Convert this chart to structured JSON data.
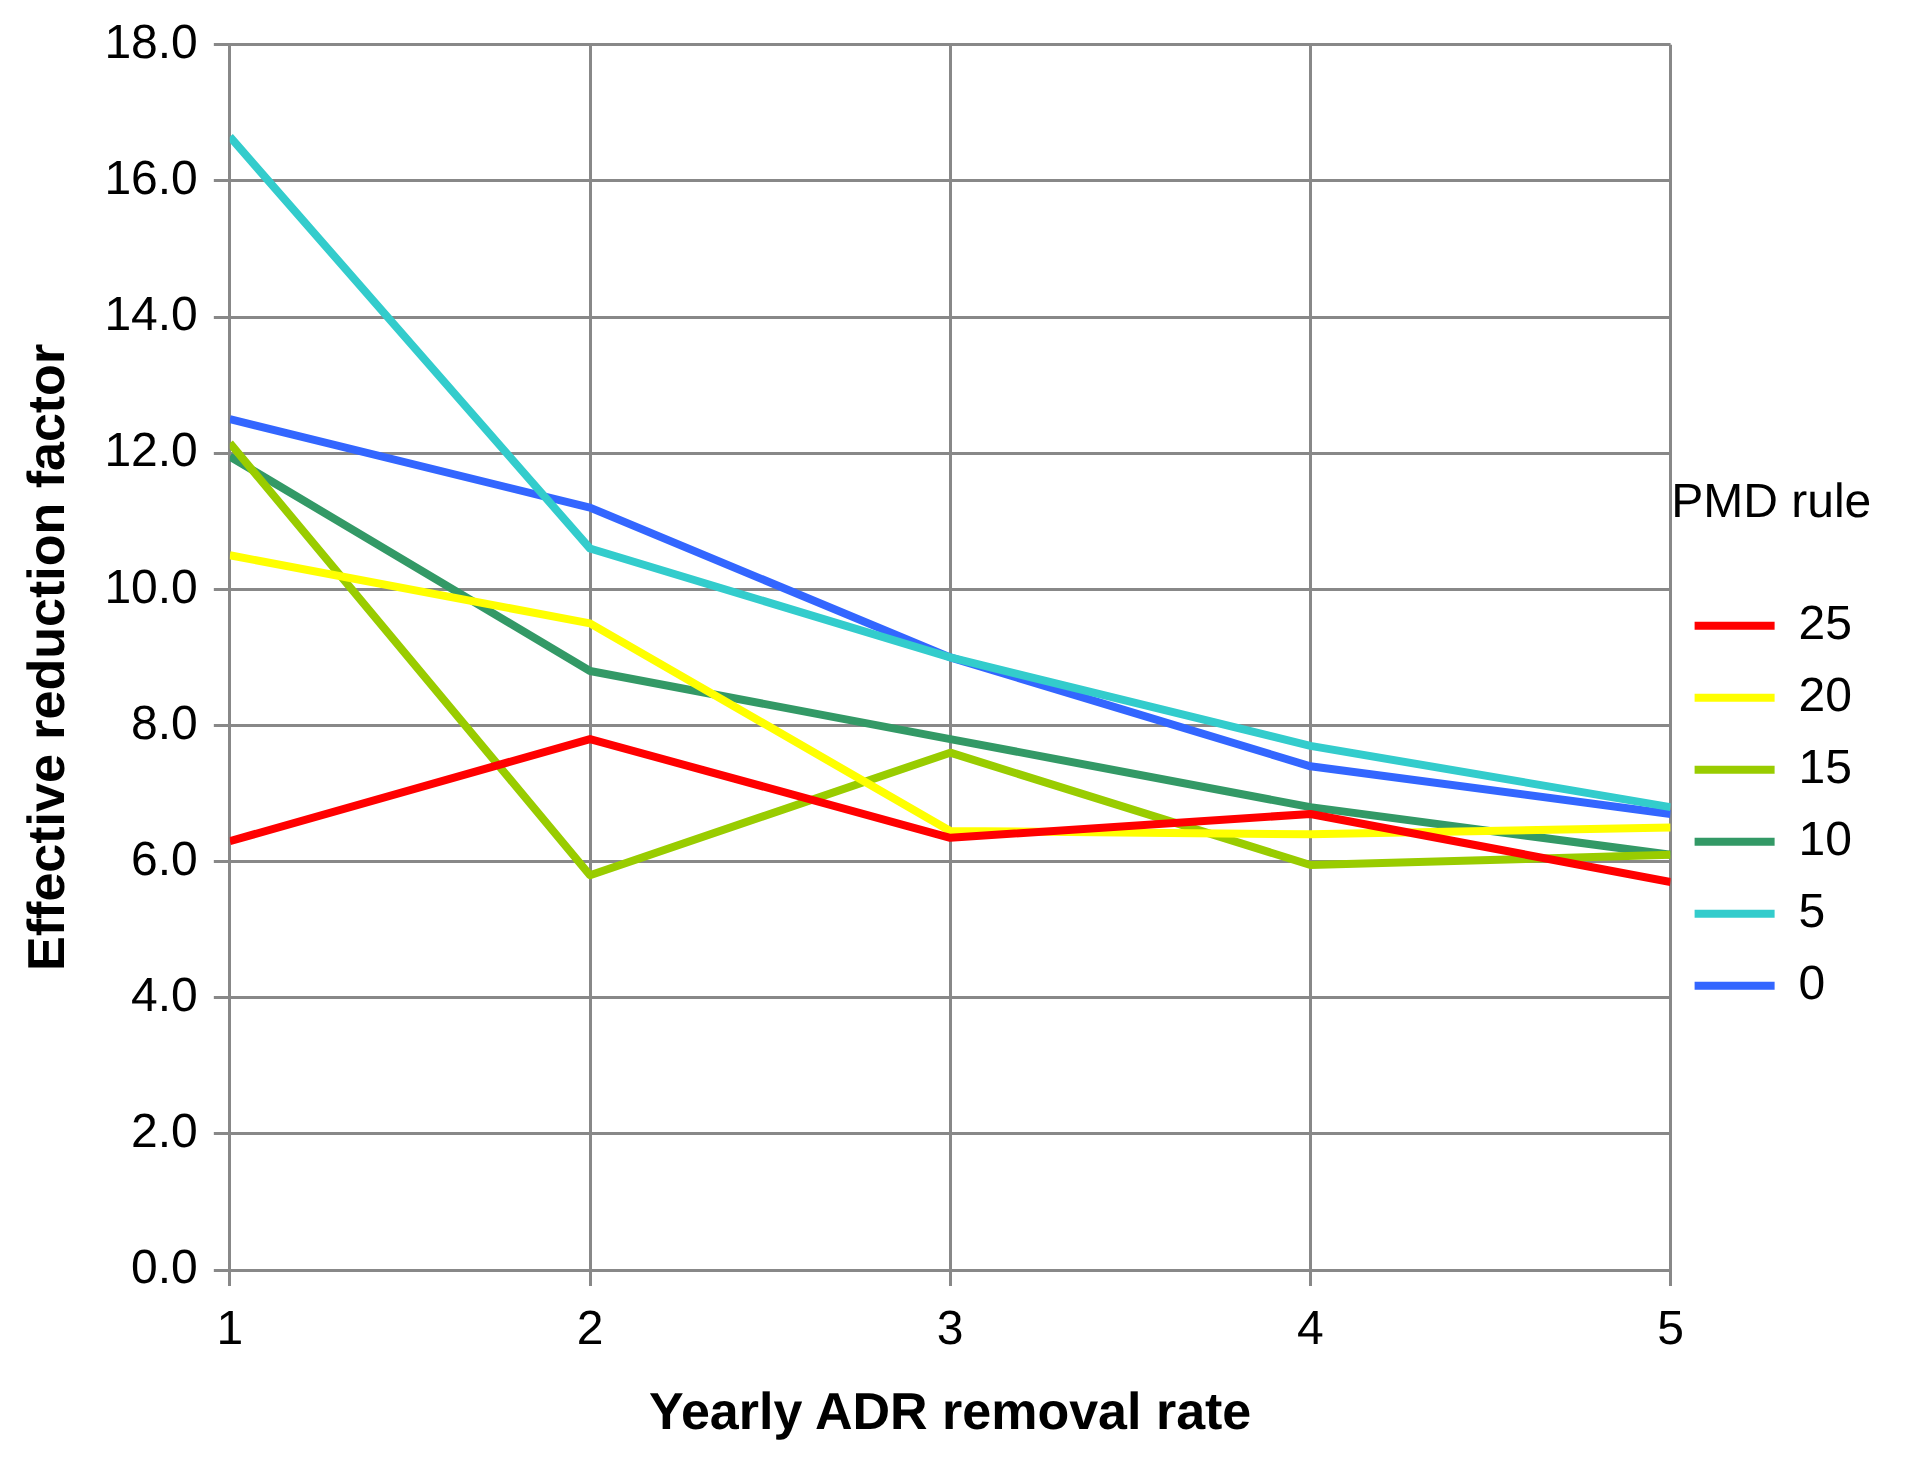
{
  "chart_data": {
    "type": "line",
    "xlabel": "Yearly ADR removal rate",
    "ylabel": "Effective reduction factor",
    "legend_title": "PMD rule",
    "x": [
      1,
      2,
      3,
      4,
      5
    ],
    "series": [
      {
        "name": "25",
        "color": "#ff0000",
        "values": [
          6.3,
          7.8,
          6.35,
          6.7,
          5.7
        ]
      },
      {
        "name": "20",
        "color": "#ffff00",
        "values": [
          10.5,
          9.5,
          6.45,
          6.4,
          6.5
        ]
      },
      {
        "name": "15",
        "color": "#99cc00",
        "values": [
          12.15,
          5.8,
          7.6,
          5.95,
          6.1
        ]
      },
      {
        "name": "10",
        "color": "#339966",
        "values": [
          11.95,
          8.8,
          7.8,
          6.8,
          6.1
        ]
      },
      {
        "name": "5",
        "color": "#33cccc",
        "values": [
          16.65,
          10.6,
          9.0,
          7.7,
          6.8
        ]
      },
      {
        "name": "0",
        "color": "#3366ff",
        "values": [
          12.5,
          11.2,
          9.0,
          7.4,
          6.7
        ]
      }
    ],
    "xlim": [
      1,
      5
    ],
    "xticks": [
      1,
      2,
      3,
      4,
      5
    ],
    "ylim": [
      0,
      18
    ],
    "yticks": [
      {
        "value": 0,
        "label": "0.0"
      },
      {
        "value": 2,
        "label": "2.0"
      },
      {
        "value": 4,
        "label": "4.0"
      },
      {
        "value": 6,
        "label": "6.0"
      },
      {
        "value": 8,
        "label": "8.0"
      },
      {
        "value": 10,
        "label": "10.0"
      },
      {
        "value": 12,
        "label": "12.0"
      },
      {
        "value": 14,
        "label": "14.0"
      },
      {
        "value": 16,
        "label": "16.0"
      },
      {
        "value": 18,
        "label": "18.0"
      }
    ],
    "grid": true,
    "legend": "right",
    "marker": "none",
    "line_style": "solid"
  }
}
